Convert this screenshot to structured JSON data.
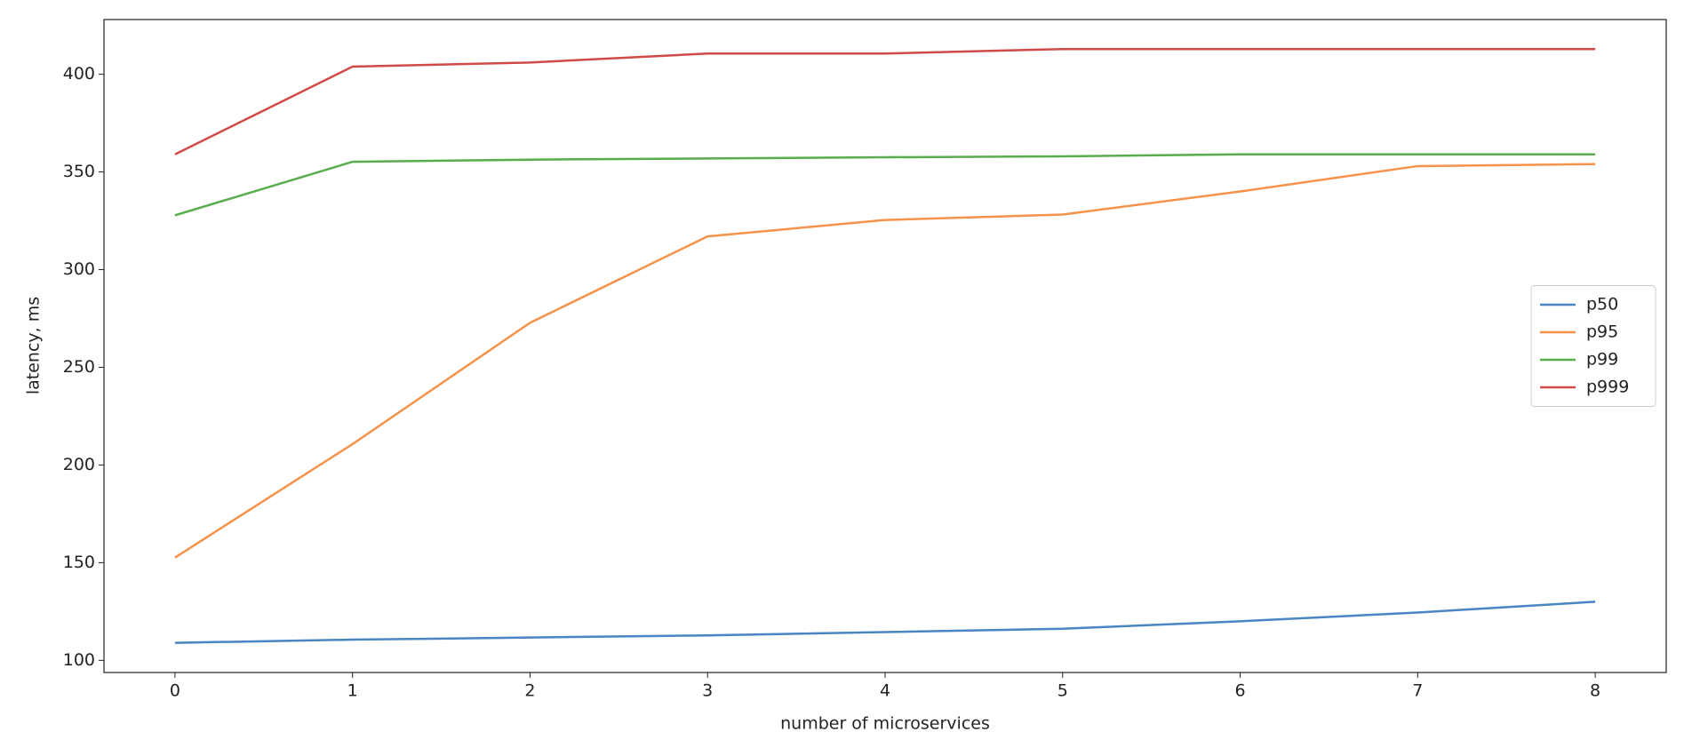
{
  "chart_data": {
    "type": "line",
    "xlabel": "number of microservices",
    "ylabel": "latency, ms",
    "x": [
      0,
      1,
      2,
      3,
      4,
      5,
      6,
      7,
      8
    ],
    "series": [
      {
        "name": "p50",
        "color": "#4a86c2",
        "values": [
          109,
          110.6,
          111.7,
          112.8,
          114.5,
          116.2,
          120,
          124.5,
          130
        ]
      },
      {
        "name": "p95",
        "color": "#f5934a",
        "values": [
          152.6,
          210.7,
          272.8,
          317,
          325.4,
          328.2,
          340,
          353,
          354
        ]
      },
      {
        "name": "p99",
        "color": "#5aad4e",
        "values": [
          327.8,
          355.2,
          356.3,
          356.9,
          357.5,
          358,
          359,
          359,
          359
        ]
      },
      {
        "name": "p999",
        "color": "#d14a48",
        "values": [
          359,
          403.9,
          406,
          410.6,
          410.6,
          412.9,
          412.9,
          412.9,
          412.9
        ]
      }
    ],
    "xlim": [
      -0.4,
      8.4
    ],
    "xticks": [
      0,
      1,
      2,
      3,
      4,
      5,
      6,
      7,
      8
    ],
    "ylim": [
      93.8,
      428
    ],
    "yticks": [
      100,
      150,
      200,
      250,
      300,
      350,
      400
    ],
    "legend": "center right"
  }
}
